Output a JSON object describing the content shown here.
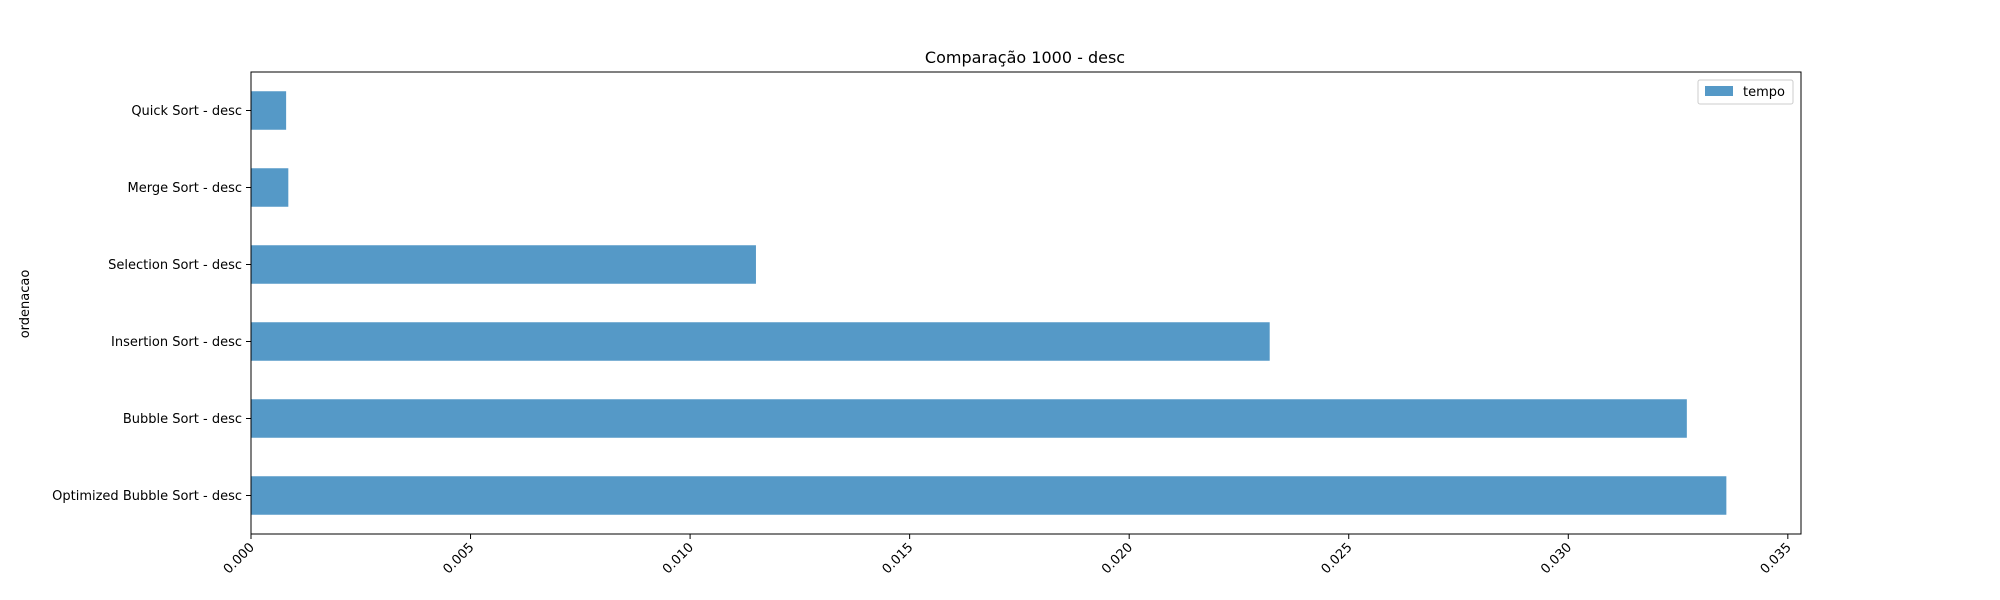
{
  "chart_data": {
    "type": "bar",
    "orientation": "horizontal",
    "title": "Comparação 1000 - desc",
    "xlabel": "",
    "ylabel": "ordenacao",
    "categories": [
      "Quick Sort - desc",
      "Merge Sort - desc",
      "Selection Sort - desc",
      "Insertion Sort - desc",
      "Bubble Sort - desc",
      "Optimized Bubble Sort - desc"
    ],
    "series": [
      {
        "name": "tempo",
        "values": [
          0.0008,
          0.00085,
          0.0115,
          0.0232,
          0.0327,
          0.0336
        ]
      }
    ],
    "xlim": [
      0,
      0.0353
    ],
    "xticks": [
      0.0,
      0.005,
      0.01,
      0.015,
      0.02,
      0.025,
      0.03,
      0.035
    ],
    "xtick_labels": [
      "0.000",
      "0.005",
      "0.010",
      "0.015",
      "0.020",
      "0.025",
      "0.030",
      "0.035"
    ],
    "grid": false,
    "legend_position": "top-right",
    "colors": {
      "bar": "#5599c7",
      "axis": "#000000"
    }
  }
}
